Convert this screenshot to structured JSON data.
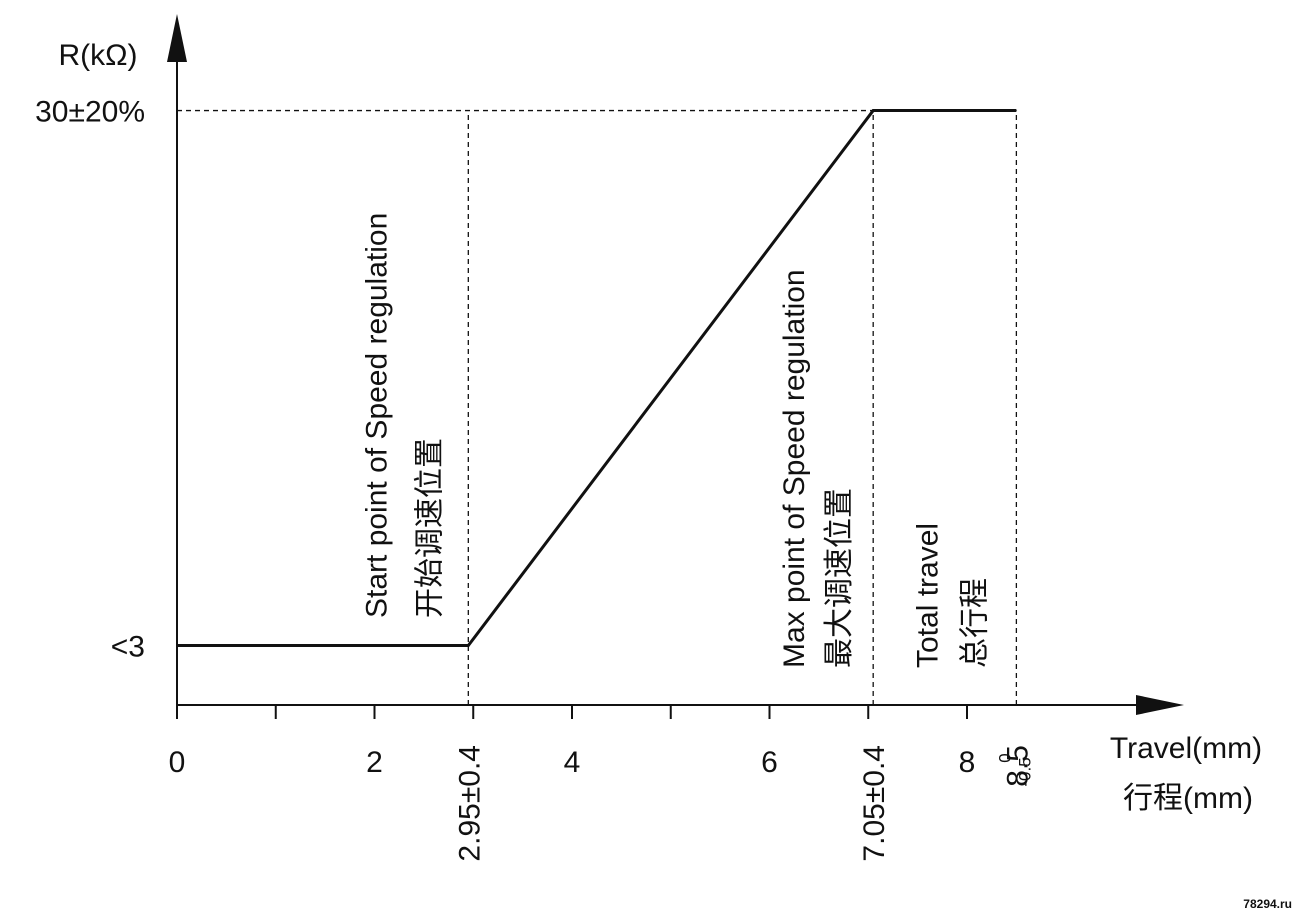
{
  "chart_data": {
    "type": "line",
    "y_label": "R(kΩ)",
    "x_label": [
      "Travel(mm)",
      "行程(mm)"
    ],
    "x": [
      0,
      2.95,
      7.05,
      8.5
    ],
    "series": [
      {
        "color": "#111111",
        "values": [
          3,
          3,
          30,
          30
        ]
      }
    ],
    "xlim": [
      0,
      10.2
    ],
    "ylim": [
      0,
      35
    ],
    "xticks": [
      0,
      2,
      4,
      6,
      8
    ],
    "xminor_ticks": [
      1,
      3,
      5,
      7
    ],
    "yticks": [
      {
        "value": 3,
        "label": "<3"
      },
      {
        "value": 30,
        "label": "30±20%"
      }
    ],
    "markers": [
      {
        "x": 2.95,
        "label": "2.95±0.4",
        "annotation": [
          "Start point of Speed regulation",
          "开始调速位置"
        ]
      },
      {
        "x": 7.05,
        "label": "7.05±0.4",
        "annotation": [
          "Max point of Speed regulation",
          "最大调速位置"
        ]
      },
      {
        "x": 8.5,
        "label": "8.5",
        "upper": "0",
        "lower": "-0.5",
        "annotation": [
          "Total travel",
          "总行程"
        ]
      }
    ],
    "watermark": "78294.ru"
  }
}
